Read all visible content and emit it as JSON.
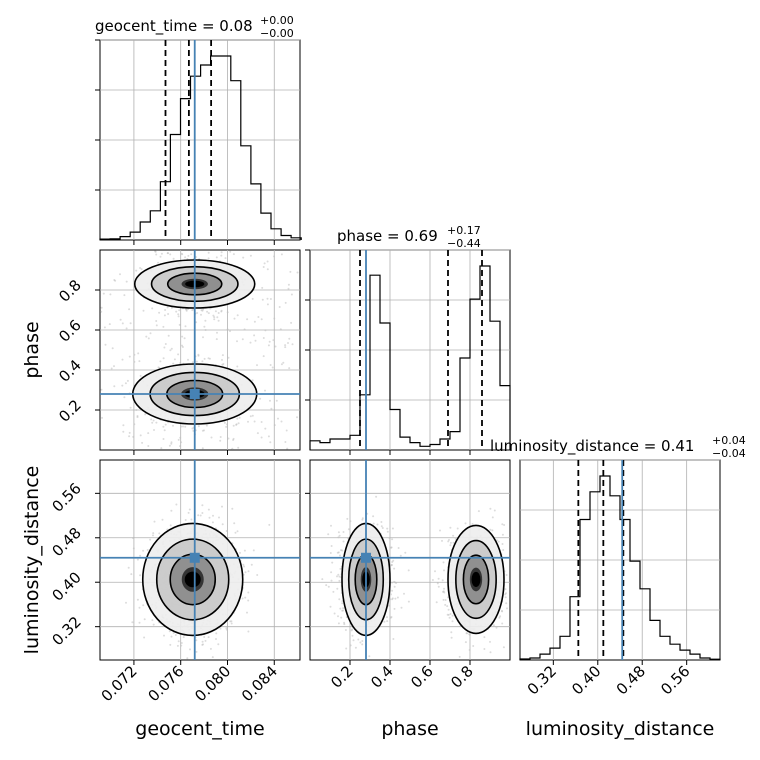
{
  "chart_data": {
    "type": "corner",
    "parameters": [
      "geocent_time",
      "phase",
      "luminosity_distance"
    ],
    "true_values": {
      "geocent_time": 0.0772,
      "phase": 0.28,
      "luminosity_distance": 0.444
    },
    "axes": {
      "geocent_time": {
        "label": "geocent_time",
        "range": [
          0.0691,
          0.0862
        ],
        "ticks": [
          0.072,
          0.076,
          0.08,
          0.084
        ],
        "tick_labels": [
          "0.072",
          "0.076",
          "0.080",
          "0.084"
        ]
      },
      "phase": {
        "label": "phase",
        "range": [
          0.0,
          1.0
        ],
        "ticks": [
          0.2,
          0.4,
          0.6,
          0.8
        ],
        "tick_labels": [
          "0.2",
          "0.4",
          "0.6",
          "0.8"
        ]
      },
      "luminosity_distance": {
        "label": "luminosity_distance",
        "range": [
          0.26,
          0.62
        ],
        "ticks": [
          0.32,
          0.4,
          0.48,
          0.56
        ],
        "tick_labels": [
          "0.32",
          "0.40",
          "0.48",
          "0.56"
        ]
      }
    },
    "titles": {
      "geocent_time": {
        "text": "geocent_time = 0.08",
        "plus": "+0.00",
        "minus": "−0.00"
      },
      "phase": {
        "text": "phase = 0.69",
        "plus": "+0.17",
        "minus": "−0.44"
      },
      "luminosity_distance": {
        "text": "luminosity_distance = 0.41",
        "plus": "+0.04",
        "minus": "−0.04"
      }
    },
    "quantiles": {
      "geocent_time": [
        0.0747,
        0.0767,
        0.0786
      ],
      "phase": [
        0.25,
        0.69,
        0.86
      ],
      "luminosity_distance": [
        0.365,
        0.41,
        0.446
      ]
    },
    "histograms": {
      "geocent_time": {
        "start": 0.0691,
        "width": 0.00086,
        "counts": [
          0.4,
          0.5,
          1.5,
          3.5,
          8,
          13,
          26,
          47,
          63,
          73,
          78,
          82,
          82,
          71,
          42,
          25,
          12,
          5,
          2,
          1
        ]
      },
      "phase": {
        "start": 0.0,
        "width": 0.05,
        "counts": [
          5,
          4,
          6,
          6,
          8,
          30,
          95,
          69,
          22,
          7,
          4,
          2,
          3,
          6,
          10,
          50,
          82,
          100,
          70,
          35
        ]
      },
      "luminosity_distance": {
        "start": 0.26,
        "width": 0.018,
        "counts": [
          0.5,
          1,
          3,
          6,
          12,
          32,
          71,
          85,
          93,
          83,
          71,
          50,
          36,
          20,
          12,
          8,
          5,
          3,
          1,
          0.4
        ]
      }
    },
    "modes": [
      {
        "geocent_time": 0.0772,
        "phase": 0.28,
        "phase_sd": 0.06
      },
      {
        "geocent_time": 0.0772,
        "phase": 0.83,
        "phase_sd": 0.055
      }
    ],
    "dist_center": 0.405,
    "grid": true,
    "color": {
      "truth": "#4682b4",
      "hist": "#000000",
      "quantile": "#000000",
      "scatter": "#c0c0c0"
    }
  }
}
